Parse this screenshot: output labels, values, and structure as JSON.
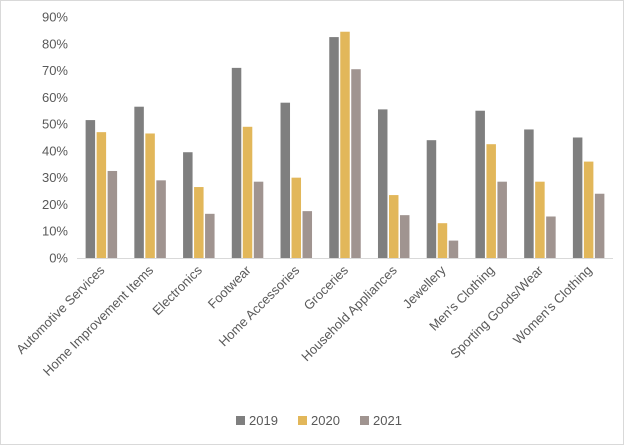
{
  "chart_data": {
    "type": "bar",
    "title": "",
    "xlabel": "",
    "ylabel": "",
    "ylim": [
      0,
      90
    ],
    "y_ticks": [
      "0%",
      "10%",
      "20%",
      "30%",
      "40%",
      "50%",
      "60%",
      "70%",
      "80%",
      "90%"
    ],
    "grid": false,
    "legend_position": "bottom",
    "categories": [
      "Automotive Services",
      "Home Improvement Items",
      "Electronics",
      "Footwear",
      "Home Accessories",
      "Groceries",
      "Household Appliances",
      "Jewellery",
      "Men's Clothing",
      "Sporting Goods/Wear",
      "Women's Clothing"
    ],
    "series": [
      {
        "name": "2019",
        "color": "#7f7f7f",
        "values": [
          51.5,
          56.5,
          39.5,
          71,
          58,
          82.5,
          55.5,
          44,
          55,
          48,
          45
        ]
      },
      {
        "name": "2020",
        "color": "#e2b75a",
        "values": [
          47,
          46.5,
          26.5,
          49,
          30,
          84.5,
          23.5,
          13,
          42.5,
          28.5,
          36
        ]
      },
      {
        "name": "2021",
        "color": "#a09490",
        "values": [
          32.5,
          29,
          16.5,
          28.5,
          17.5,
          70.5,
          16,
          6.5,
          28.5,
          15.5,
          24
        ]
      }
    ]
  }
}
